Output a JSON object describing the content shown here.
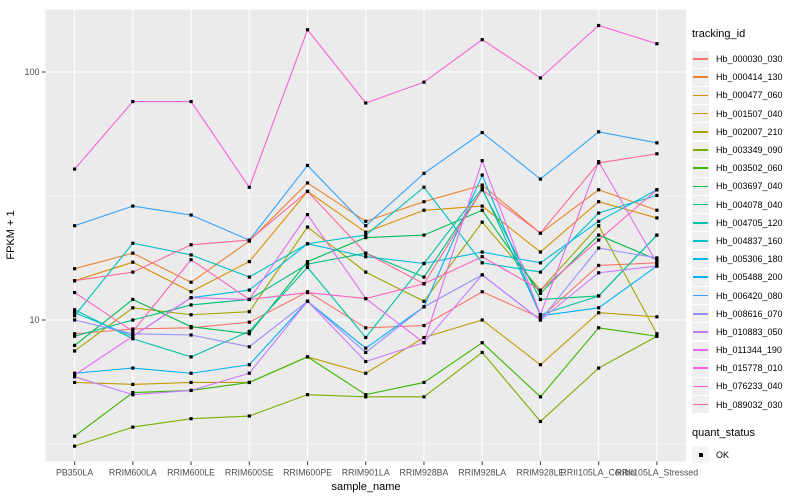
{
  "chart_data": {
    "type": "line",
    "title": "",
    "xlabel": "sample_name",
    "ylabel": "FPKM + 1",
    "y_scale": "log10",
    "ylim": [
      2.7,
      178
    ],
    "y_major_ticks": [
      100,
      10
    ],
    "y_minor_gridlines": [
      31.62,
      3.162
    ],
    "grid": "on",
    "panel_bg": "#EBEBEB",
    "grid_color": "#FFFFFF",
    "tick_color": "#333333",
    "tick_label_color": "#4D4D4D",
    "marker": {
      "shape": "square",
      "color": "#000000",
      "size": 3.2
    },
    "legend": {
      "title": "tracking_id",
      "position": "right",
      "key_bg": "#EFEFEF"
    },
    "quant_legend": {
      "title": "quant_status",
      "items": [
        {
          "label": "OK"
        }
      ]
    },
    "categories": [
      "PB350LA",
      "RRIM600LA",
      "RRIM600LE",
      "RRIM600SE",
      "RRIM600PE",
      "RRIM901LA",
      "RRIM928BA",
      "RRIM928LA",
      "RRIM928LE",
      "RRII105LA_Control",
      "RRII105LA_Stressed"
    ],
    "series": [
      {
        "name": "Hb_000030_030",
        "color": "#F8766D",
        "values": [
          8.8,
          9.2,
          9.3,
          9.8,
          13.0,
          9.3,
          9.5,
          13.0,
          10.2,
          16.6,
          17.0
        ]
      },
      {
        "name": "Hb_000414_130",
        "color": "#EA8331",
        "values": [
          16.1,
          18.6,
          14.2,
          20.8,
          35.7,
          25.0,
          30.0,
          35.0,
          22.4,
          33.5,
          27.7
        ]
      },
      {
        "name": "Hb_000477_060",
        "color": "#D89000",
        "values": [
          14.4,
          17.1,
          13.0,
          17.2,
          33.0,
          22.6,
          27.7,
          28.8,
          18.8,
          30.0,
          25.8
        ]
      },
      {
        "name": "Hb_001507_040",
        "color": "#C09B00",
        "values": [
          5.6,
          5.5,
          5.6,
          5.6,
          7.1,
          6.1,
          8.5,
          10.0,
          6.6,
          10.7,
          10.3
        ]
      },
      {
        "name": "Hb_002007_210",
        "color": "#A3A500",
        "values": [
          7.5,
          11.2,
          10.5,
          10.8,
          23.7,
          15.6,
          11.9,
          24.8,
          13.2,
          24.0,
          8.8
        ]
      },
      {
        "name": "Hb_003349_090",
        "color": "#7CAE00",
        "values": [
          3.1,
          3.7,
          4.0,
          4.1,
          5.0,
          4.9,
          4.9,
          7.4,
          3.9,
          6.4,
          8.6
        ]
      },
      {
        "name": "Hb_003502_060",
        "color": "#39B600",
        "values": [
          3.4,
          5.1,
          5.2,
          5.6,
          7.1,
          5.0,
          5.6,
          8.1,
          4.9,
          9.3,
          8.6
        ]
      },
      {
        "name": "Hb_003697_040",
        "color": "#00BB4E",
        "values": [
          7.9,
          12.1,
          9.4,
          8.8,
          17.2,
          21.5,
          22.0,
          27.7,
          12.8,
          22.0,
          17.5
        ]
      },
      {
        "name": "Hb_004078_040",
        "color": "#00BF7D",
        "values": [
          8.6,
          10.0,
          11.5,
          12.1,
          16.8,
          18.6,
          14.9,
          33.5,
          12.1,
          12.5,
          22.0
        ]
      },
      {
        "name": "Hb_004705_120",
        "color": "#00C1A3",
        "values": [
          11.0,
          8.4,
          7.1,
          9.0,
          16.3,
          8.5,
          16.9,
          34.0,
          10.5,
          12.5,
          22.0
        ]
      },
      {
        "name": "Hb_004837_160",
        "color": "#00BFC4",
        "values": [
          10.4,
          20.4,
          18.3,
          14.9,
          20.3,
          22.0,
          34.3,
          17.0,
          15.6,
          27.0,
          31.8
        ]
      },
      {
        "name": "Hb_005306_180",
        "color": "#00BAE0",
        "values": [
          10.7,
          8.6,
          12.3,
          13.2,
          20.3,
          18.0,
          16.9,
          18.8,
          17.0,
          25.0,
          33.5
        ]
      },
      {
        "name": "Hb_005488_200",
        "color": "#00B0F6",
        "values": [
          6.1,
          6.4,
          6.1,
          6.6,
          11.9,
          7.7,
          11.3,
          38.4,
          10.4,
          11.2,
          16.5
        ]
      },
      {
        "name": "Hb_006420_080",
        "color": "#35A2FF",
        "values": [
          24.0,
          28.8,
          26.5,
          21.0,
          42.0,
          24.0,
          39.0,
          57.0,
          37.0,
          57.4,
          51.8
        ]
      },
      {
        "name": "Hb_008616_070",
        "color": "#9590FF",
        "values": [
          10.0,
          8.8,
          8.7,
          7.8,
          11.9,
          7.4,
          11.3,
          15.2,
          10.0,
          19.5,
          17.8
        ]
      },
      {
        "name": "Hb_010883_050",
        "color": "#C77CFF",
        "values": [
          5.9,
          5.0,
          5.2,
          6.1,
          11.9,
          6.8,
          8.1,
          15.2,
          10.0,
          15.5,
          16.5
        ]
      },
      {
        "name": "Hb_011344_190",
        "color": "#E76BF3",
        "values": [
          6.0,
          8.6,
          12.3,
          12.1,
          26.6,
          12.2,
          8.1,
          43.9,
          10.5,
          43.5,
          17.0
        ]
      },
      {
        "name": "Hb_015778_010",
        "color": "#FA62DB",
        "values": [
          40.6,
          76.0,
          76.0,
          34.3,
          148.0,
          75.0,
          91.0,
          135.0,
          94.6,
          154.0,
          130.0
        ]
      },
      {
        "name": "Hb_076233_040",
        "color": "#FF62BC",
        "values": [
          12.9,
          9.0,
          17.5,
          12.1,
          12.9,
          12.2,
          14.0,
          18.0,
          13.2,
          21.0,
          33.5
        ]
      },
      {
        "name": "Hb_089032_030",
        "color": "#FF6A98",
        "values": [
          14.4,
          15.6,
          20.1,
          21.0,
          33.0,
          18.6,
          14.0,
          33.5,
          22.4,
          43.0,
          46.8
        ]
      }
    ]
  }
}
